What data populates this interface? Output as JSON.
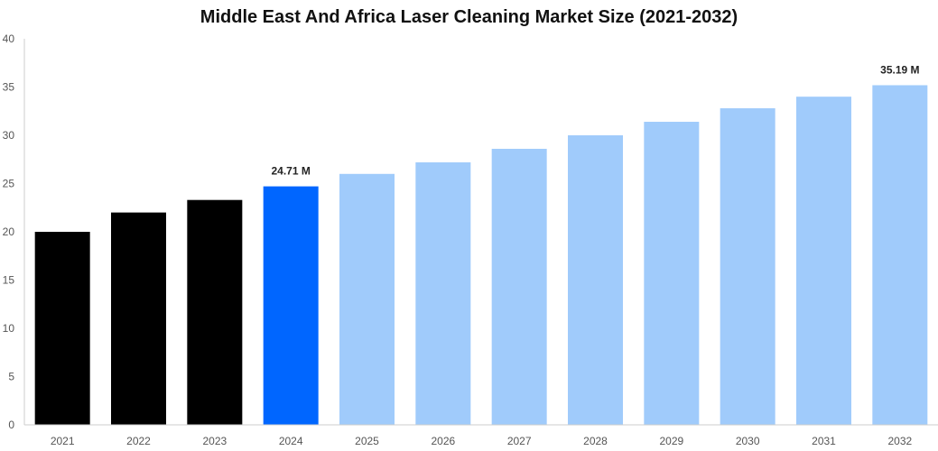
{
  "chart_data": {
    "type": "bar",
    "title": "Middle East And Africa Laser Cleaning Market Size (2021-2032)",
    "xlabel": "",
    "ylabel": "",
    "categories": [
      "2021",
      "2022",
      "2023",
      "2024",
      "2025",
      "2026",
      "2027",
      "2028",
      "2029",
      "2030",
      "2031",
      "2032"
    ],
    "values": [
      20.0,
      22.0,
      23.3,
      24.71,
      26.0,
      27.2,
      28.6,
      30.0,
      31.4,
      32.8,
      34.0,
      35.19
    ],
    "ylim": [
      0,
      40
    ],
    "yticks": [
      0,
      5,
      10,
      15,
      20,
      25,
      30,
      35,
      40
    ],
    "grid": false,
    "legend": "none",
    "data_labels": [
      {
        "index": 3,
        "text": "24.71 M"
      },
      {
        "index": 11,
        "text": "35.19 M"
      }
    ],
    "colors": {
      "historical": "#000000",
      "current": "#0066ff",
      "forecast": "#a0cbfb",
      "axis": "#cccccc"
    },
    "bar_groups": [
      "historical",
      "historical",
      "historical",
      "current",
      "forecast",
      "forecast",
      "forecast",
      "forecast",
      "forecast",
      "forecast",
      "forecast",
      "forecast"
    ]
  }
}
